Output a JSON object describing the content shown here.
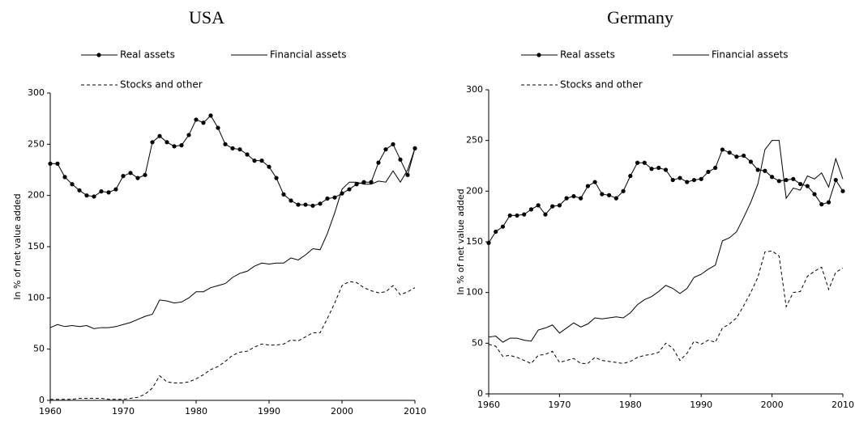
{
  "chart_data": [
    {
      "type": "line",
      "title": "USA",
      "y_label": "In % of net value added",
      "x": [
        1960,
        1961,
        1962,
        1963,
        1964,
        1965,
        1966,
        1967,
        1968,
        1969,
        1970,
        1971,
        1972,
        1973,
        1974,
        1975,
        1976,
        1977,
        1978,
        1979,
        1980,
        1981,
        1982,
        1983,
        1984,
        1985,
        1986,
        1987,
        1988,
        1989,
        1990,
        1991,
        1992,
        1993,
        1994,
        1995,
        1996,
        1997,
        1998,
        1999,
        2000,
        2001,
        2002,
        2003,
        2004,
        2005,
        2006,
        2007,
        2008,
        2009,
        2010
      ],
      "xlim": [
        1960,
        2010
      ],
      "xticks": [
        1960,
        1970,
        1980,
        1990,
        2000,
        2010
      ],
      "ylim": [
        0,
        300
      ],
      "yticks": [
        0,
        50,
        100,
        150,
        200,
        250,
        300
      ],
      "series": [
        {
          "name": "Real assets",
          "color": "#000000",
          "style": "solid",
          "marker": "circle",
          "values": [
            231,
            231,
            218,
            211,
            205,
            200,
            199,
            204,
            203,
            206,
            219,
            222,
            217,
            220,
            252,
            258,
            252,
            248,
            249,
            259,
            274,
            271,
            278,
            266,
            250,
            246,
            245,
            240,
            234,
            234,
            228,
            217,
            201,
            195,
            191,
            191,
            190,
            192,
            197,
            198,
            202,
            206,
            211,
            213,
            213,
            232,
            245,
            250,
            235,
            220,
            246
          ]
        },
        {
          "name": "Financial assets",
          "color": "#000000",
          "style": "solid",
          "values": [
            71,
            74,
            72,
            73,
            72,
            73,
            70,
            71,
            71,
            72,
            74,
            76,
            79,
            82,
            84,
            98,
            97,
            95,
            96,
            100,
            106,
            106,
            110,
            112,
            114,
            120,
            124,
            126,
            131,
            134,
            133,
            134,
            134,
            139,
            137,
            142,
            148,
            147,
            163,
            183,
            206,
            213,
            213,
            211,
            211,
            214,
            213,
            224,
            213,
            225,
            246
          ]
        },
        {
          "name": "Stocks and other",
          "color": "#000000",
          "style": "dashed",
          "values": [
            1,
            1,
            1,
            1,
            2,
            2,
            2,
            2,
            1,
            1,
            1,
            2,
            3,
            6,
            12,
            24,
            18,
            17,
            17,
            18,
            21,
            25,
            30,
            33,
            38,
            44,
            47,
            48,
            52,
            55,
            54,
            54,
            55,
            59,
            58,
            62,
            66,
            66,
            80,
            95,
            112,
            116,
            115,
            110,
            107,
            105,
            106,
            112,
            103,
            106,
            110
          ]
        }
      ]
    },
    {
      "type": "line",
      "title": "Germany",
      "y_label": "In % of net value added",
      "x": [
        1960,
        1961,
        1962,
        1963,
        1964,
        1965,
        1966,
        1967,
        1968,
        1969,
        1970,
        1971,
        1972,
        1973,
        1974,
        1975,
        1976,
        1977,
        1978,
        1979,
        1980,
        1981,
        1982,
        1983,
        1984,
        1985,
        1986,
        1987,
        1988,
        1989,
        1990,
        1991,
        1992,
        1993,
        1994,
        1995,
        1996,
        1997,
        1998,
        1999,
        2000,
        2001,
        2002,
        2003,
        2004,
        2005,
        2006,
        2007,
        2008,
        2009,
        2010
      ],
      "xlim": [
        1960,
        2010
      ],
      "xticks": [
        1960,
        1970,
        1980,
        1990,
        2000,
        2010
      ],
      "ylim": [
        0,
        300
      ],
      "yticks": [
        0,
        50,
        100,
        150,
        200,
        250,
        300
      ],
      "series": [
        {
          "name": "Real assets",
          "color": "#000000",
          "style": "solid",
          "marker": "circle",
          "values": [
            149,
            160,
            165,
            176,
            176,
            177,
            182,
            186,
            177,
            185,
            186,
            193,
            195,
            193,
            205,
            209,
            197,
            196,
            193,
            200,
            215,
            228,
            228,
            222,
            223,
            221,
            211,
            213,
            209,
            211,
            212,
            219,
            223,
            241,
            238,
            234,
            235,
            229,
            221,
            220,
            214,
            210,
            211,
            212,
            207,
            205,
            197,
            187,
            189,
            211,
            200
          ]
        },
        {
          "name": "Financial assets",
          "color": "#000000",
          "style": "solid",
          "values": [
            56,
            57,
            51,
            55,
            55,
            53,
            52,
            63,
            65,
            68,
            60,
            65,
            70,
            66,
            69,
            75,
            74,
            75,
            76,
            75,
            80,
            88,
            93,
            96,
            101,
            107,
            104,
            99,
            104,
            115,
            118,
            123,
            127,
            151,
            154,
            160,
            174,
            189,
            207,
            241,
            250,
            250,
            193,
            203,
            201,
            215,
            212,
            218,
            204,
            232,
            212
          ]
        },
        {
          "name": "Stocks and other",
          "color": "#000000",
          "style": "dashed",
          "values": [
            49,
            47,
            37,
            38,
            36,
            33,
            30,
            38,
            39,
            42,
            31,
            33,
            35,
            30,
            30,
            36,
            33,
            32,
            31,
            30,
            32,
            36,
            38,
            39,
            41,
            50,
            45,
            33,
            40,
            52,
            49,
            53,
            51,
            65,
            69,
            75,
            87,
            100,
            115,
            140,
            141,
            136,
            86,
            100,
            101,
            116,
            121,
            125,
            103,
            120,
            124
          ]
        }
      ]
    }
  ]
}
